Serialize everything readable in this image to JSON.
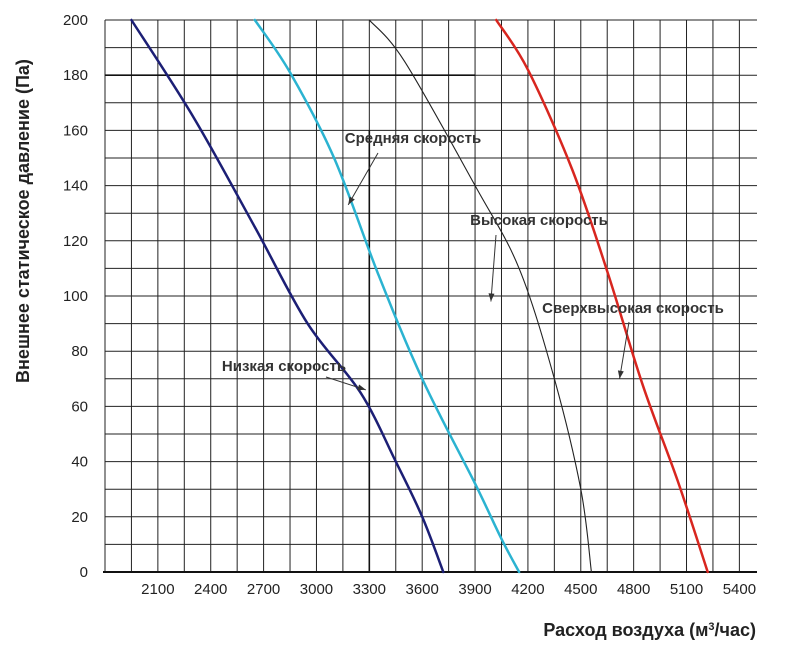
{
  "chart_data": {
    "type": "line",
    "title": "",
    "xlabel_main": "Расход воздуха (м",
    "xlabel_sup": "3",
    "xlabel_tail": "/час)",
    "ylabel": "Внешнее статическое давление (Па)",
    "xlim": [
      1800,
      5500
    ],
    "ylim": [
      0,
      200
    ],
    "x_ticks": [
      2100,
      2400,
      2700,
      3000,
      3300,
      3600,
      3900,
      4200,
      4500,
      4800,
      5100,
      5400
    ],
    "x_tick_labels": [
      "2100",
      "2400",
      "2700",
      "3000",
      "3300",
      "3600",
      "3900",
      "4200",
      "4500",
      "4800",
      "5100",
      "5400"
    ],
    "y_ticks": [
      0,
      20,
      40,
      60,
      80,
      100,
      120,
      140,
      160,
      180,
      200
    ],
    "y_tick_labels": [
      "0",
      "20",
      "40",
      "60",
      "80",
      "100",
      "120",
      "140",
      "160",
      "180",
      "200"
    ],
    "grid": true,
    "reference_lines": {
      "y": 180,
      "x": 3300
    },
    "series": [
      {
        "name": "Низкая скорость",
        "color": "#1c1f75",
        "points": [
          [
            1950,
            200
          ],
          [
            2300,
            165
          ],
          [
            2650,
            125
          ],
          [
            2950,
            90
          ],
          [
            3250,
            65
          ],
          [
            3450,
            40
          ],
          [
            3600,
            20
          ],
          [
            3720,
            0
          ]
        ]
      },
      {
        "name": "Средняя скорость",
        "color": "#2bb3d1",
        "points": [
          [
            2650,
            200
          ],
          [
            2850,
            181
          ],
          [
            3100,
            150
          ],
          [
            3350,
            108
          ],
          [
            3600,
            70
          ],
          [
            3900,
            32
          ],
          [
            4050,
            12
          ],
          [
            4150,
            0
          ]
        ]
      },
      {
        "name": "Высокая скорость",
        "color": "#222222",
        "points": [
          [
            3300,
            200
          ],
          [
            3500,
            185
          ],
          [
            3900,
            140
          ],
          [
            4150,
            110
          ],
          [
            4350,
            70
          ],
          [
            4500,
            30
          ],
          [
            4560,
            0
          ]
        ]
      },
      {
        "name": "Сверхвысокая скорость",
        "color": "#d8261f",
        "points": [
          [
            4020,
            200
          ],
          [
            4200,
            182
          ],
          [
            4450,
            146
          ],
          [
            4650,
            109
          ],
          [
            4850,
            68
          ],
          [
            5050,
            33
          ],
          [
            5220,
            0
          ]
        ]
      }
    ],
    "annotations": [
      {
        "text": "Средняя скорость",
        "anchor_series": "Средняя скорость",
        "point": [
          3180,
          133
        ]
      },
      {
        "text": "Высокая скорость",
        "anchor_series": "Высокая скорость",
        "point": [
          3990,
          98
        ]
      },
      {
        "text": "Сверхвысокая скорость",
        "anchor_series": "Сверхвысокая скорость",
        "point": [
          4720,
          70
        ]
      },
      {
        "text": "Низкая скорость",
        "anchor_series": "Низкая скорость",
        "point": [
          3280,
          66
        ]
      }
    ]
  }
}
